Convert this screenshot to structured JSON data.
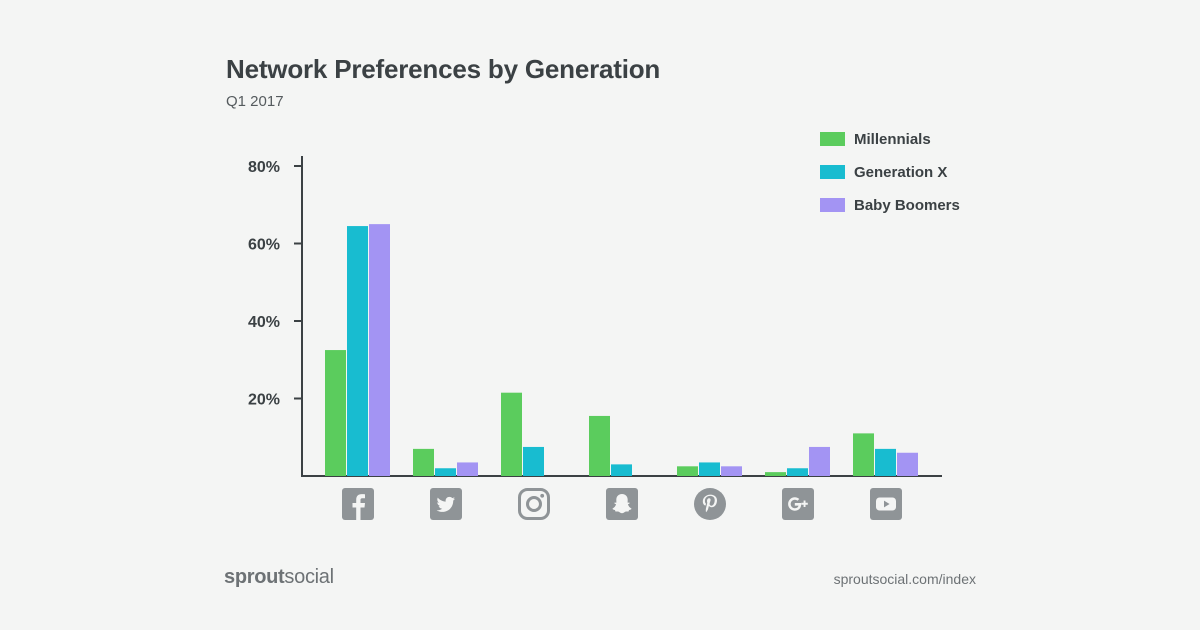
{
  "title": "Network Preferences by Generation",
  "subtitle": "Q1 2017",
  "footer": {
    "brand_part1": "sprout",
    "brand_part2": "social",
    "url": "sproutsocial.com/index"
  },
  "chart_data": {
    "type": "bar",
    "title": "Network Preferences by Generation",
    "subtitle": "Q1 2017",
    "xlabel": "",
    "ylabel": "",
    "ylim": [
      0,
      80
    ],
    "yticks": [
      20,
      40,
      60,
      80
    ],
    "ytick_labels": [
      "20%",
      "40%",
      "60%",
      "80%"
    ],
    "grid": false,
    "legend_position": "top-right",
    "categories": [
      "facebook-icon",
      "twitter-icon",
      "instagram-icon",
      "snapchat-icon",
      "pinterest-icon",
      "google-plus-icon",
      "youtube-icon"
    ],
    "series": [
      {
        "name": "Millennials",
        "color": "#5bcc5d",
        "values": [
          32.5,
          7,
          21.5,
          15.5,
          2.5,
          1,
          11
        ]
      },
      {
        "name": "Generation X",
        "color": "#18bcd0",
        "values": [
          64.5,
          2,
          7.5,
          3,
          3.5,
          2,
          7
        ]
      },
      {
        "name": "Baby Boomers",
        "color": "#a394f3",
        "values": [
          65,
          3.5,
          0,
          0,
          2.5,
          7.5,
          6
        ]
      }
    ]
  },
  "colors": {
    "axis": "#3b4144",
    "icon": "#8f9497",
    "background": "#f4f5f4"
  }
}
